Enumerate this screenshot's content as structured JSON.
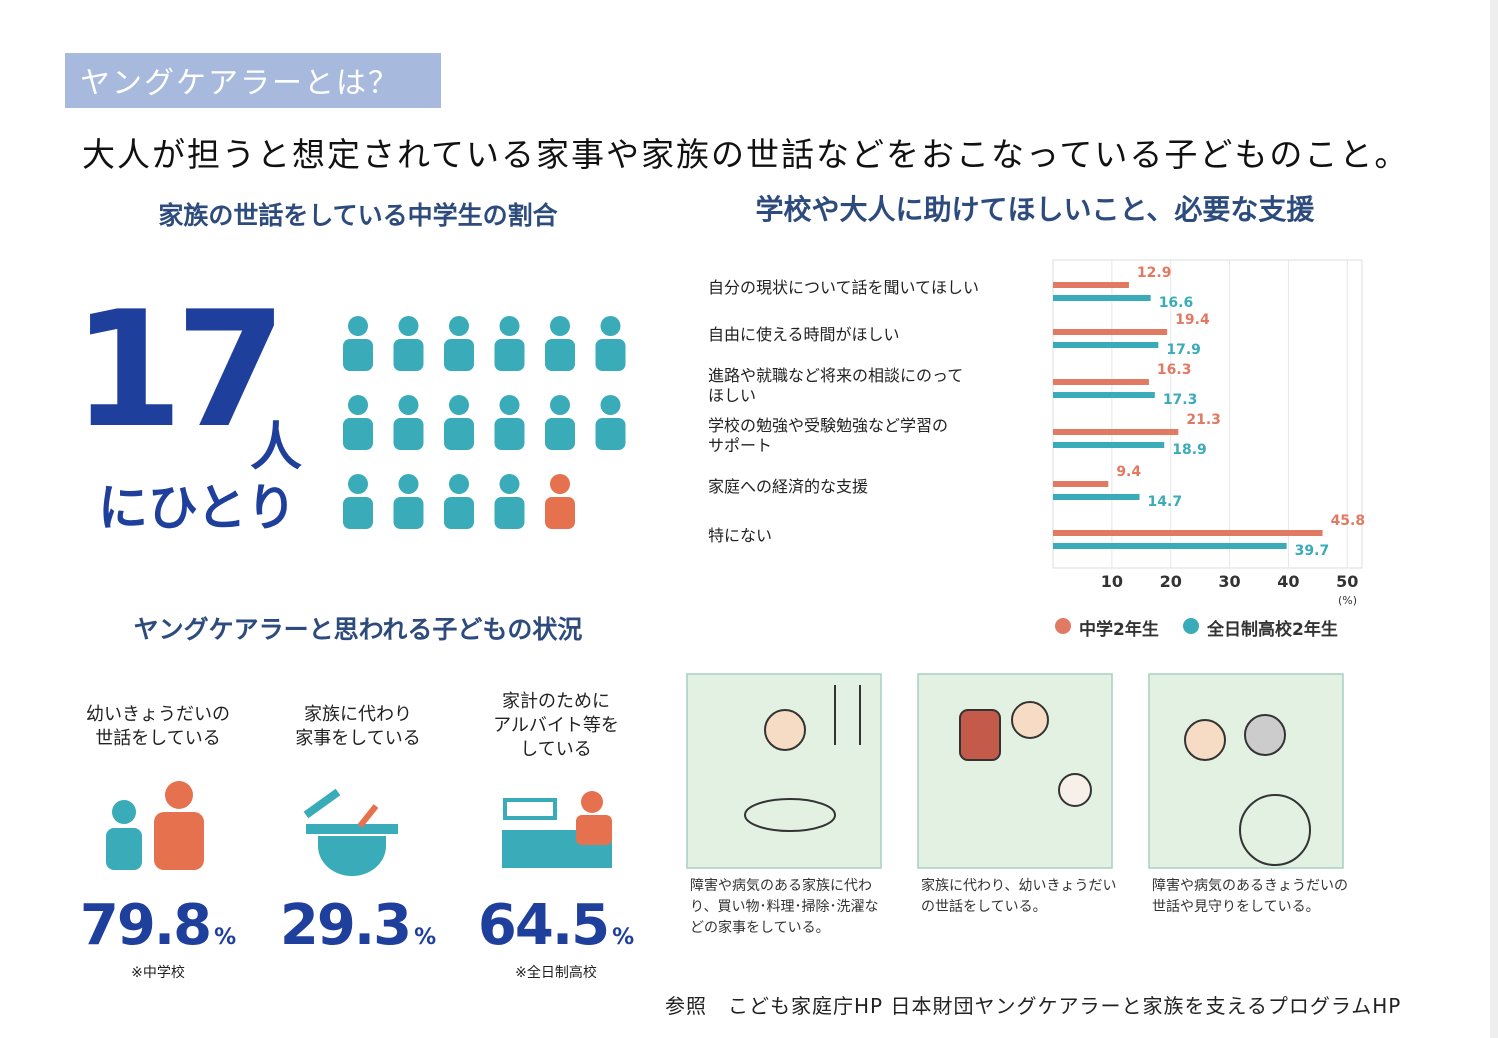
{
  "header": {
    "badge": "ヤングケアラーとは？",
    "definition": "大人が担うと想定されている家事や家族の世話などをおこなっている子どものこと。"
  },
  "ratio": {
    "title": "家族の世話をしている中学生の割合",
    "value": 17,
    "unit": "人",
    "suffix": "にひとり"
  },
  "chart_data": {
    "type": "bar",
    "orientation": "horizontal",
    "title": "学校や大人に助けてほしいこと、必要な支援",
    "categories": [
      "自分の現状について話を聞いてほしい",
      "自由に使える時間がほしい",
      "進路や就職など将来の相談にのって\nほしい",
      "学校の勉強や受験勉強など学習の\nサポート",
      "家庭への経済的な支援",
      "特にない"
    ],
    "series": [
      {
        "name": "中学2年生",
        "color": "#e07a62",
        "values": [
          12.9,
          19.4,
          16.3,
          21.3,
          9.4,
          45.8
        ]
      },
      {
        "name": "全日制高校2年生",
        "color": "#3aabb8",
        "values": [
          16.6,
          17.9,
          17.3,
          18.9,
          14.7,
          39.7
        ]
      }
    ],
    "xlim": [
      0,
      52.5
    ],
    "xticks": [
      10,
      20,
      30,
      40,
      50
    ],
    "x_unit": "(%)",
    "grid": true,
    "legend": "bottom"
  },
  "status": {
    "title": "ヤングケアラーと思われる子どもの状況",
    "items": [
      {
        "label": "幼いきょうだいの\n世話をしている",
        "value": 79.8,
        "unit": "%",
        "note": "※中学校"
      },
      {
        "label": "家族に代わり\n家事をしている",
        "value": 29.3,
        "unit": "%"
      },
      {
        "label": "家計のために\nアルバイト等を\nしている",
        "value": 64.5,
        "unit": "%",
        "note": "※全日制高校"
      }
    ]
  },
  "illustrations": {
    "captions": [
      "障害や病気のある家族に代わり、買い物･料理･掃除･洗濯などの家事をしている。",
      "家族に代わり、幼いきょうだいの世話をしている。",
      "障害や病気のあるきょうだいの世話や見守りをしている。"
    ]
  },
  "footer": "参照　こども家庭庁HP 日本財団ヤングケアラーと家族を支えるプログラムHP"
}
